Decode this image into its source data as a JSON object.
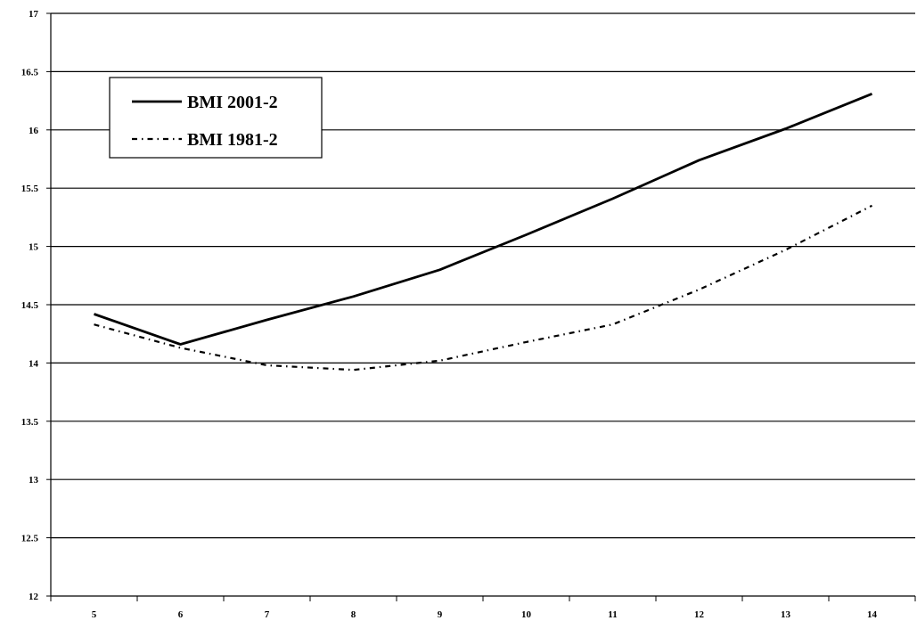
{
  "chart_data": {
    "type": "line",
    "title": "",
    "xlabel": "",
    "ylabel": "",
    "x": [
      5,
      6,
      7,
      8,
      9,
      10,
      11,
      12,
      13,
      14
    ],
    "x_tick_labels": [
      "5",
      "6",
      "7",
      "8",
      "9",
      "10",
      "11",
      "12",
      "13",
      "14"
    ],
    "y_tick_labels": [
      "12",
      "12.5",
      "13",
      "13.5",
      "14",
      "14.5",
      "15",
      "15.5",
      "16",
      "16.5",
      "17"
    ],
    "ylim": [
      12,
      17
    ],
    "grid": true,
    "legend_position": "top-left",
    "series": [
      {
        "name": "BMI 2001-2",
        "style": "solid",
        "values": [
          14.42,
          14.16,
          14.37,
          14.57,
          14.8,
          15.1,
          15.41,
          15.74,
          16.01,
          16.31
        ]
      },
      {
        "name": "BMI 1981-2",
        "style": "dash-dot",
        "values": [
          14.33,
          14.13,
          13.98,
          13.94,
          14.02,
          14.18,
          14.33,
          14.63,
          14.97,
          15.35
        ]
      }
    ]
  },
  "colors": {
    "line": "#000000",
    "grid": "#000000",
    "background": "#ffffff"
  }
}
